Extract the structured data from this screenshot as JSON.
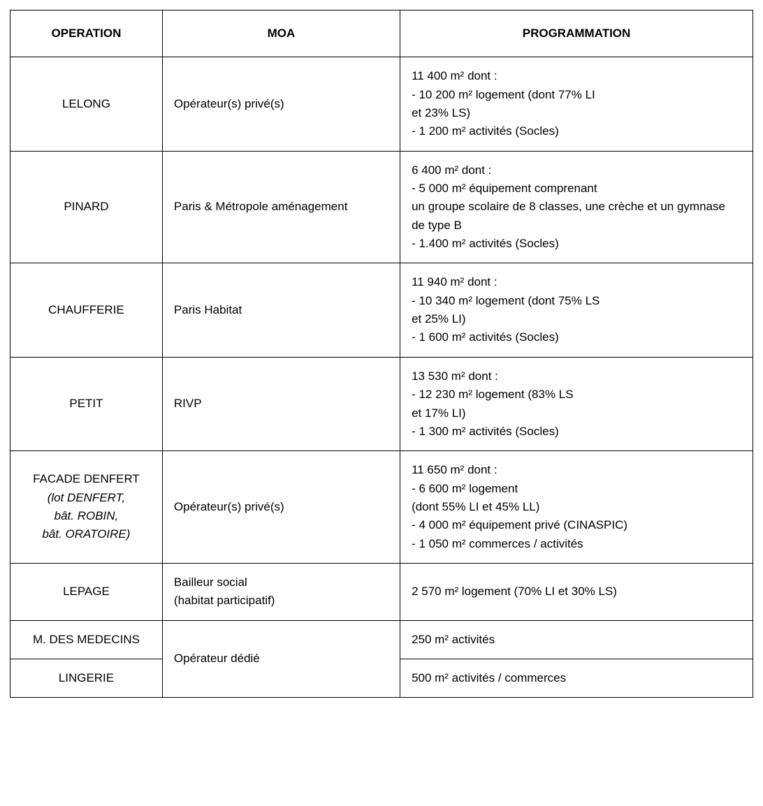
{
  "headers": {
    "operation": "OPERATION",
    "moa": "MOA",
    "programmation": "PROGRAMMATION"
  },
  "rows": [
    {
      "op_main": "LELONG",
      "op_sub": "",
      "moa": "Opérateur(s) privé(s)",
      "prog": "11 400 m² dont :\n- 10 200 m² logement (dont 77% LI\net 23% LS)\n- 1 200 m² activités (Socles)"
    },
    {
      "op_main": "PINARD",
      "op_sub": "",
      "moa": "Paris & Métropole aménagement",
      "prog": "6 400 m² dont :\n- 5 000 m² équipement comprenant\nun groupe scolaire de 8 classes, une crèche et un gymnase de type B\n- 1.400 m² activités (Socles)"
    },
    {
      "op_main": "CHAUFFERIE",
      "op_sub": "",
      "moa": "Paris Habitat",
      "prog": "11 940 m² dont :\n- 10 340 m² logement (dont 75% LS\net 25% LI)\n- 1 600 m² activités (Socles)"
    },
    {
      "op_main": "PETIT",
      "op_sub": "",
      "moa": "RIVP",
      "prog": "13 530 m² dont :\n- 12 230 m² logement (83% LS\net 17% LI)\n- 1 300 m² activités (Socles)"
    },
    {
      "op_main": "FACADE DENFERT",
      "op_sub": "(lot DENFERT,\nbât. ROBIN,\nbât. ORATOIRE)",
      "moa": "Opérateur(s) privé(s)",
      "prog": "11 650 m² dont :\n- 6 600 m² logement\n  (dont 55% LI et 45% LL)\n- 4 000 m² équipement privé (CINASPIC)\n- 1 050 m² commerces / activités"
    },
    {
      "op_main": "LEPAGE",
      "op_sub": "",
      "moa": "Bailleur social\n(habitat participatif)",
      "prog": "2 570 m² logement (70% LI et 30% LS)"
    }
  ],
  "merged": {
    "moa": "Opérateur dédié",
    "items": [
      {
        "op_main": "M. DES MEDECINS",
        "prog": "250 m² activités"
      },
      {
        "op_main": "LINGERIE",
        "prog": "500 m² activités / commerces"
      }
    ]
  }
}
